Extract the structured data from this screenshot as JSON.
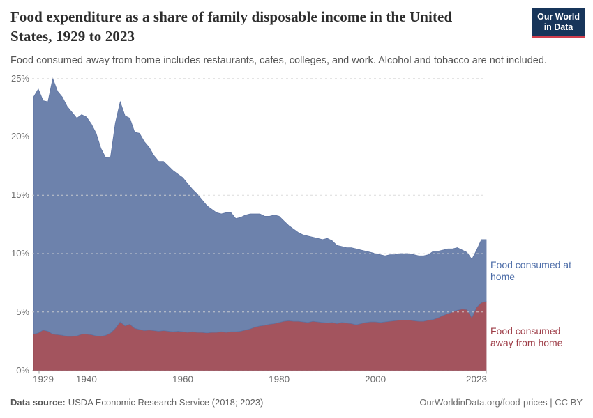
{
  "header": {
    "title": "Food expenditure as a share of family disposable income in the United States, 1929 to 2023",
    "subtitle": "Food consumed away from home includes restaurants, cafes, colleges, and work. Alcohol and tobacco are not included.",
    "logo": {
      "line1": "Our World",
      "line2": "in Data",
      "bg_color": "#17355a",
      "accent_color": "#d13e4d"
    }
  },
  "chart_data": {
    "type": "area",
    "stacked": true,
    "title": "Food expenditure as a share of family disposable income in the United States, 1929 to 2023",
    "xlabel": "",
    "ylabel": "",
    "ylim": [
      0,
      25
    ],
    "grid": "dashed-horizontal",
    "legend_position": "right-inline",
    "x": [
      1929,
      1930,
      1931,
      1932,
      1933,
      1934,
      1935,
      1936,
      1937,
      1938,
      1939,
      1940,
      1941,
      1942,
      1943,
      1944,
      1945,
      1946,
      1947,
      1948,
      1949,
      1950,
      1951,
      1952,
      1953,
      1954,
      1955,
      1956,
      1957,
      1958,
      1959,
      1960,
      1961,
      1962,
      1963,
      1964,
      1965,
      1966,
      1967,
      1968,
      1969,
      1970,
      1971,
      1972,
      1973,
      1974,
      1975,
      1976,
      1977,
      1978,
      1979,
      1980,
      1981,
      1982,
      1983,
      1984,
      1985,
      1986,
      1987,
      1988,
      1989,
      1990,
      1991,
      1992,
      1993,
      1994,
      1995,
      1996,
      1997,
      1998,
      1999,
      2000,
      2001,
      2002,
      2003,
      2004,
      2005,
      2006,
      2007,
      2008,
      2009,
      2010,
      2011,
      2012,
      2013,
      2014,
      2015,
      2016,
      2017,
      2018,
      2019,
      2020,
      2021,
      2022,
      2023
    ],
    "series": [
      {
        "name": "Food consumed away from home",
        "color": "#a3545e",
        "edge_color": "#934a56",
        "text_color": "#9e3d47",
        "values": [
          3.1,
          3.2,
          3.45,
          3.35,
          3.1,
          3.05,
          3.0,
          2.9,
          2.9,
          2.95,
          3.1,
          3.1,
          3.05,
          2.95,
          2.9,
          3.0,
          3.2,
          3.6,
          4.15,
          3.8,
          3.95,
          3.6,
          3.5,
          3.4,
          3.45,
          3.4,
          3.35,
          3.4,
          3.35,
          3.3,
          3.35,
          3.3,
          3.25,
          3.3,
          3.25,
          3.25,
          3.2,
          3.25,
          3.25,
          3.3,
          3.25,
          3.3,
          3.3,
          3.35,
          3.45,
          3.55,
          3.7,
          3.8,
          3.85,
          3.95,
          4.0,
          4.1,
          4.2,
          4.25,
          4.2,
          4.2,
          4.15,
          4.1,
          4.2,
          4.15,
          4.1,
          4.05,
          4.1,
          4.0,
          4.1,
          4.05,
          4.0,
          3.9,
          4.0,
          4.1,
          4.15,
          4.15,
          4.1,
          4.15,
          4.2,
          4.25,
          4.3,
          4.3,
          4.3,
          4.25,
          4.2,
          4.2,
          4.3,
          4.35,
          4.5,
          4.7,
          4.85,
          5.0,
          5.15,
          5.25,
          5.2,
          4.5,
          5.4,
          5.8,
          5.9
        ]
      },
      {
        "name": "Food consumed at home",
        "color": "#6d82ac",
        "edge_color": "#5e74a3",
        "text_color": "#4d6da8",
        "values": [
          20.3,
          20.9,
          19.65,
          19.65,
          21.9,
          20.85,
          20.4,
          19.7,
          19.2,
          18.65,
          18.8,
          18.6,
          18.05,
          17.35,
          16.1,
          15.2,
          15.1,
          17.6,
          18.85,
          18.0,
          17.65,
          16.8,
          16.8,
          16.2,
          15.65,
          15.0,
          14.55,
          14.5,
          14.15,
          13.8,
          13.45,
          13.2,
          12.75,
          12.2,
          11.85,
          11.35,
          10.9,
          10.55,
          10.25,
          10.1,
          10.25,
          10.2,
          9.7,
          9.75,
          9.85,
          9.85,
          9.7,
          9.6,
          9.35,
          9.25,
          9.3,
          9.1,
          8.6,
          8.15,
          7.9,
          7.6,
          7.45,
          7.4,
          7.2,
          7.15,
          7.1,
          7.25,
          7.0,
          6.7,
          6.5,
          6.45,
          6.5,
          6.5,
          6.3,
          6.1,
          5.95,
          5.85,
          5.8,
          5.65,
          5.7,
          5.65,
          5.7,
          5.7,
          5.7,
          5.65,
          5.6,
          5.6,
          5.6,
          5.85,
          5.7,
          5.6,
          5.55,
          5.4,
          5.35,
          5.05,
          4.9,
          5.0,
          4.9,
          5.4,
          5.3
        ]
      }
    ],
    "y_ticks": [
      0,
      5,
      10,
      15,
      20,
      25
    ],
    "y_tick_labels": [
      "0%",
      "5%",
      "10%",
      "15%",
      "20%",
      "25%"
    ],
    "x_ticks": [
      1929,
      1940,
      1960,
      1980,
      2000,
      2023
    ],
    "x_tick_labels": [
      "1929",
      "1940",
      "1960",
      "1980",
      "2000",
      "2023"
    ]
  },
  "footer": {
    "source_label": "Data source:",
    "source": "USDA Economic Research Service (2018; 2023)",
    "right": "OurWorldinData.org/food-prices | CC BY"
  }
}
